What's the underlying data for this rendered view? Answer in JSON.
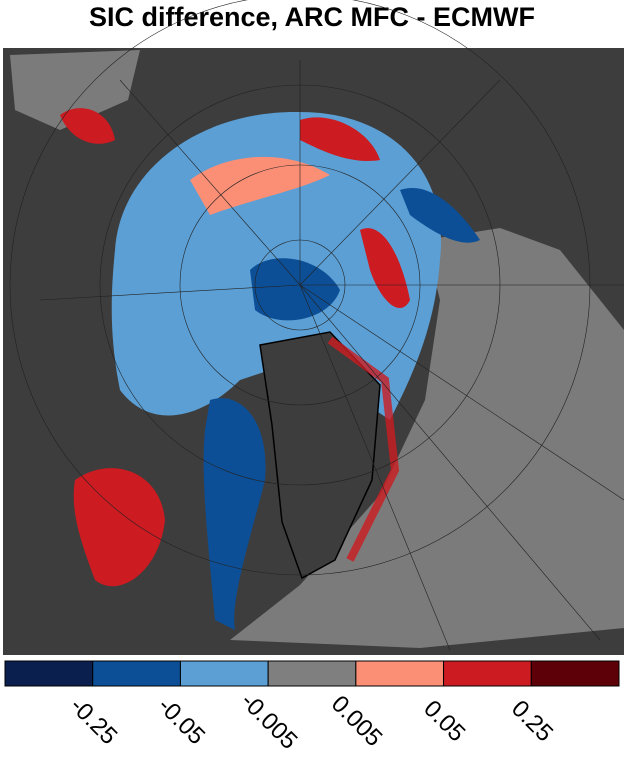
{
  "title": "SIC difference, ARC MFC - ECMWF",
  "colorbar": {
    "colors": [
      "#0b1f4f",
      "#0d4f96",
      "#5b9fd5",
      "#7f7f7f",
      "#fa8f76",
      "#cc1b21",
      "#5e0008"
    ],
    "ticks": [
      -0.25,
      -0.05,
      -0.005,
      0.005,
      0.05,
      0.25
    ]
  }
}
